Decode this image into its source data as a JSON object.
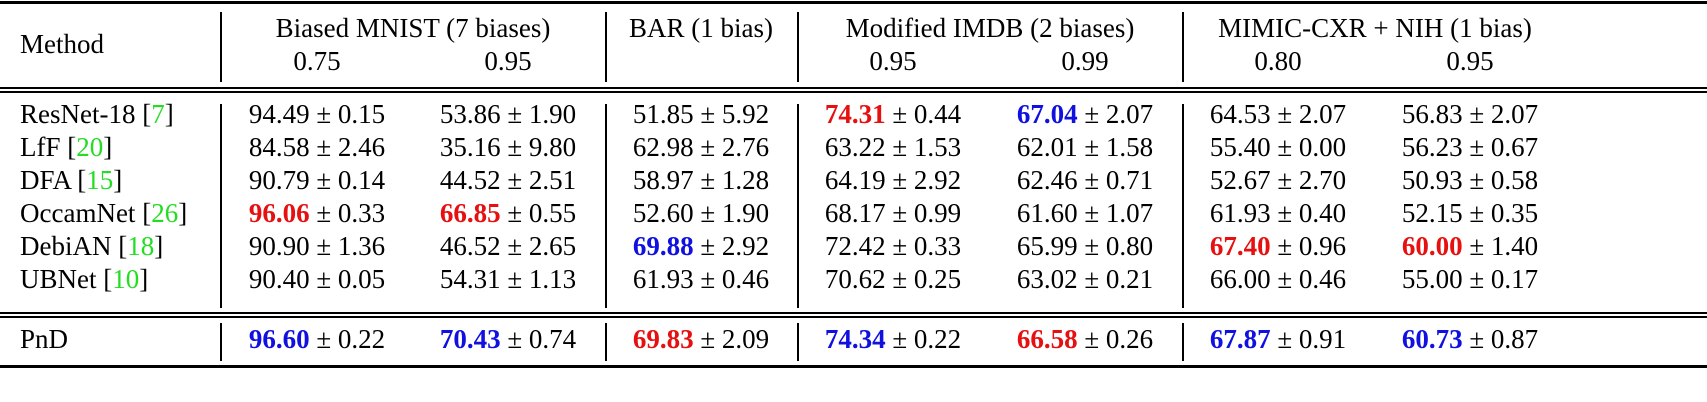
{
  "table": {
    "header": {
      "method": "Method",
      "groups": [
        {
          "name": "Biased MNIST (7 biases)",
          "subcols": [
            "0.75",
            "0.95"
          ]
        },
        {
          "name": "BAR (1 bias)",
          "subcols": [
            ""
          ]
        },
        {
          "name": "Modified IMDB (2 biases)",
          "subcols": [
            "0.95",
            "0.99"
          ]
        },
        {
          "name": "MIMIC-CXR + NIH (1 bias)",
          "subcols": [
            "0.80",
            "0.95"
          ]
        }
      ]
    },
    "highlight_colors": {
      "best": "#1010e0",
      "second": "#e61010",
      "citation": "#22dd22"
    },
    "rows": [
      {
        "method": "ResNet-18",
        "ref": "7",
        "cells": [
          {
            "mean": "94.49",
            "std": "0.15",
            "hl": ""
          },
          {
            "mean": "53.86",
            "std": "1.90",
            "hl": ""
          },
          {
            "mean": "51.85",
            "std": "5.92",
            "hl": ""
          },
          {
            "mean": "74.31",
            "std": "0.44",
            "hl": "red"
          },
          {
            "mean": "67.04",
            "std": "2.07",
            "hl": "blue"
          },
          {
            "mean": "64.53",
            "std": "2.07",
            "hl": ""
          },
          {
            "mean": "56.83",
            "std": "2.07",
            "hl": ""
          }
        ]
      },
      {
        "method": "LfF",
        "ref": "20",
        "cells": [
          {
            "mean": "84.58",
            "std": "2.46",
            "hl": ""
          },
          {
            "mean": "35.16",
            "std": "9.80",
            "hl": ""
          },
          {
            "mean": "62.98",
            "std": "2.76",
            "hl": ""
          },
          {
            "mean": "63.22",
            "std": "1.53",
            "hl": ""
          },
          {
            "mean": "62.01",
            "std": "1.58",
            "hl": ""
          },
          {
            "mean": "55.40",
            "std": "0.00",
            "hl": ""
          },
          {
            "mean": "56.23",
            "std": "0.67",
            "hl": ""
          }
        ]
      },
      {
        "method": "DFA",
        "ref": "15",
        "cells": [
          {
            "mean": "90.79",
            "std": "0.14",
            "hl": ""
          },
          {
            "mean": "44.52",
            "std": "2.51",
            "hl": ""
          },
          {
            "mean": "58.97",
            "std": "1.28",
            "hl": ""
          },
          {
            "mean": "64.19",
            "std": "2.92",
            "hl": ""
          },
          {
            "mean": "62.46",
            "std": "0.71",
            "hl": ""
          },
          {
            "mean": "52.67",
            "std": "2.70",
            "hl": ""
          },
          {
            "mean": "50.93",
            "std": "0.58",
            "hl": ""
          }
        ]
      },
      {
        "method": "OccamNet",
        "ref": "26",
        "cells": [
          {
            "mean": "96.06",
            "std": "0.33",
            "hl": "red"
          },
          {
            "mean": "66.85",
            "std": "0.55",
            "hl": "red"
          },
          {
            "mean": "52.60",
            "std": "1.90",
            "hl": ""
          },
          {
            "mean": "68.17",
            "std": "0.99",
            "hl": ""
          },
          {
            "mean": "61.60",
            "std": "1.07",
            "hl": ""
          },
          {
            "mean": "61.93",
            "std": "0.40",
            "hl": ""
          },
          {
            "mean": "52.15",
            "std": "0.35",
            "hl": ""
          }
        ]
      },
      {
        "method": "DebiAN",
        "ref": "18",
        "cells": [
          {
            "mean": "90.90",
            "std": "1.36",
            "hl": ""
          },
          {
            "mean": "46.52",
            "std": "2.65",
            "hl": ""
          },
          {
            "mean": "69.88",
            "std": "2.92",
            "hl": "blue"
          },
          {
            "mean": "72.42",
            "std": "0.33",
            "hl": ""
          },
          {
            "mean": "65.99",
            "std": "0.80",
            "hl": ""
          },
          {
            "mean": "67.40",
            "std": "0.96",
            "hl": "red"
          },
          {
            "mean": "60.00",
            "std": "1.40",
            "hl": "red"
          }
        ]
      },
      {
        "method": "UBNet",
        "ref": "10",
        "cells": [
          {
            "mean": "90.40",
            "std": "0.05",
            "hl": ""
          },
          {
            "mean": "54.31",
            "std": "1.13",
            "hl": ""
          },
          {
            "mean": "61.93",
            "std": "0.46",
            "hl": ""
          },
          {
            "mean": "70.62",
            "std": "0.25",
            "hl": ""
          },
          {
            "mean": "63.02",
            "std": "0.21",
            "hl": ""
          },
          {
            "mean": "66.00",
            "std": "0.46",
            "hl": ""
          },
          {
            "mean": "55.00",
            "std": "0.17",
            "hl": ""
          }
        ]
      },
      {
        "method": "PnD",
        "ref": "",
        "cells": [
          {
            "mean": "96.60",
            "std": "0.22",
            "hl": "blue"
          },
          {
            "mean": "70.43",
            "std": "0.74",
            "hl": "blue"
          },
          {
            "mean": "69.83",
            "std": "2.09",
            "hl": "red"
          },
          {
            "mean": "74.34",
            "std": "0.22",
            "hl": "blue"
          },
          {
            "mean": "66.58",
            "std": "0.26",
            "hl": "red"
          },
          {
            "mean": "67.87",
            "std": "0.91",
            "hl": "blue"
          },
          {
            "mean": "60.73",
            "std": "0.87",
            "hl": "blue"
          }
        ]
      }
    ]
  }
}
